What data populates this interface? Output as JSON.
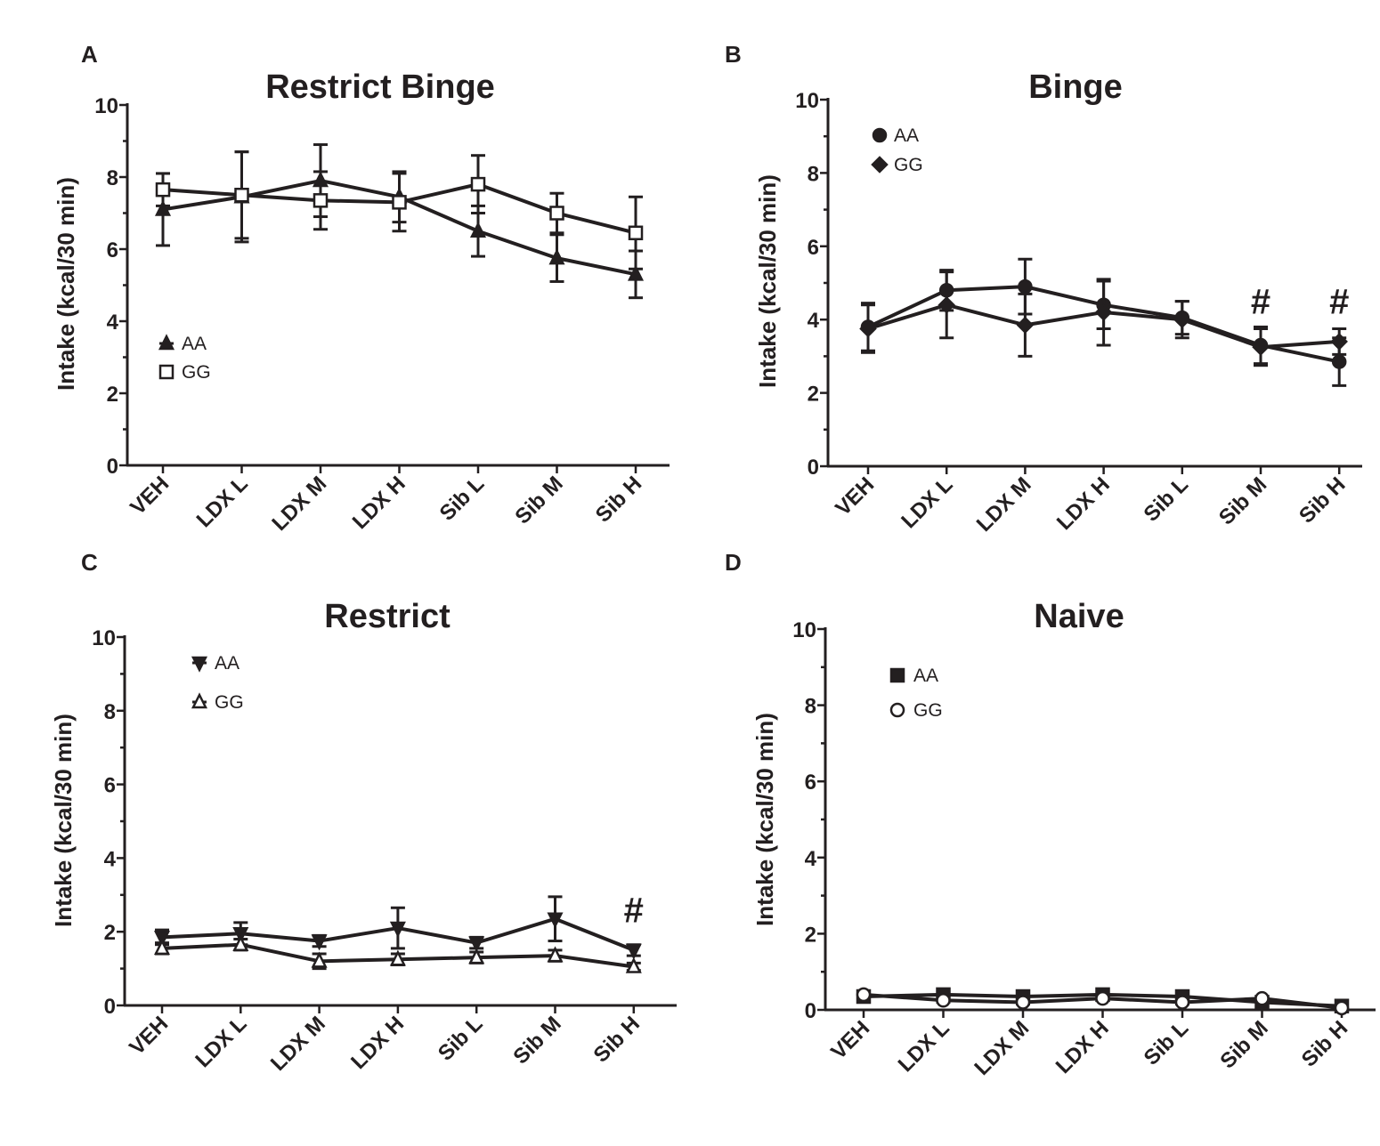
{
  "chart_data": [
    {
      "type": "line",
      "panel": "A",
      "title": "Restrict Binge",
      "ylabel": "Intake (kcal/30 min)",
      "xlabel": "",
      "ylim": [
        0,
        10
      ],
      "yticks": [
        "0",
        "2",
        "4",
        "6",
        "8",
        "10"
      ],
      "categories": [
        "VEH",
        "LDX L",
        "LDX M",
        "LDX H",
        "Sib L",
        "Sib M",
        "Sib H"
      ],
      "legend_position": "middle-left",
      "series": [
        {
          "name": "AA",
          "marker": "triangle-up",
          "fill": "#231f20",
          "values": [
            7.1,
            7.45,
            7.9,
            7.45,
            6.5,
            5.75,
            5.3
          ],
          "errors": [
            1.0,
            1.25,
            1.0,
            0.7,
            0.7,
            0.65,
            0.65
          ]
        },
        {
          "name": "GG",
          "marker": "square",
          "fill": "#ffffff",
          "values": [
            7.65,
            7.5,
            7.35,
            7.3,
            7.8,
            7.0,
            6.45
          ],
          "errors": [
            0.45,
            1.2,
            0.8,
            0.8,
            0.8,
            0.55,
            1.0
          ]
        }
      ],
      "annotations": []
    },
    {
      "type": "line",
      "panel": "B",
      "title": "Binge",
      "ylabel": "Intake (kcal/30 min)",
      "xlabel": "",
      "ylim": [
        0,
        10
      ],
      "yticks": [
        "0",
        "2",
        "4",
        "6",
        "8",
        "10"
      ],
      "categories": [
        "VEH",
        "LDX L",
        "LDX M",
        "LDX H",
        "Sib L",
        "Sib M",
        "Sib H"
      ],
      "legend_position": "top-left",
      "series": [
        {
          "name": "AA",
          "marker": "circle",
          "fill": "#231f20",
          "values": [
            3.8,
            4.8,
            4.9,
            4.4,
            4.05,
            3.3,
            2.85
          ],
          "errors": [
            0.65,
            0.55,
            0.75,
            0.65,
            0.45,
            0.5,
            0.65
          ]
        },
        {
          "name": "GG",
          "marker": "diamond",
          "fill": "#231f20",
          "values": [
            3.75,
            4.4,
            3.85,
            4.2,
            4.0,
            3.25,
            3.4
          ],
          "errors": [
            0.65,
            0.9,
            0.85,
            0.9,
            0.5,
            0.5,
            0.35
          ]
        }
      ],
      "annotations": [
        {
          "text": "#",
          "category": "Sib M",
          "y": 4.5
        },
        {
          "text": "#",
          "category": "Sib H",
          "y": 4.5
        }
      ]
    },
    {
      "type": "line",
      "panel": "C",
      "title": "Restrict",
      "ylabel": "Intake (kcal/30 min)",
      "xlabel": "",
      "ylim": [
        0,
        10
      ],
      "yticks": [
        "0",
        "2",
        "4",
        "6",
        "8",
        "10"
      ],
      "categories": [
        "VEH",
        "LDX L",
        "LDX M",
        "LDX H",
        "Sib L",
        "Sib M",
        "Sib H"
      ],
      "legend_position": "top-left",
      "series": [
        {
          "name": "AA",
          "marker": "triangle-down",
          "fill": "#231f20",
          "values": [
            1.85,
            1.95,
            1.75,
            2.1,
            1.7,
            2.35,
            1.5
          ],
          "errors": [
            0.2,
            0.3,
            0.15,
            0.55,
            0.15,
            0.6,
            0.15
          ]
        },
        {
          "name": "GG",
          "marker": "triangle-up",
          "fill": "#ffffff",
          "values": [
            1.55,
            1.65,
            1.2,
            1.25,
            1.3,
            1.35,
            1.05
          ],
          "errors": [
            0.15,
            0.15,
            0.2,
            0.15,
            0.15,
            0.15,
            0.1
          ]
        }
      ],
      "annotations": [
        {
          "text": "#",
          "category": "Sib H",
          "y": 2.6
        }
      ]
    },
    {
      "type": "line",
      "panel": "D",
      "title": "Naive",
      "ylabel": "Intake (kcal/30 min)",
      "xlabel": "",
      "ylim": [
        0,
        10
      ],
      "yticks": [
        "0",
        "2",
        "4",
        "6",
        "8",
        "10"
      ],
      "categories": [
        "VEH",
        "LDX L",
        "LDX M",
        "LDX H",
        "Sib L",
        "Sib M",
        "Sib H"
      ],
      "legend_position": "top-left",
      "series": [
        {
          "name": "AA",
          "marker": "square",
          "fill": "#231f20",
          "values": [
            0.35,
            0.4,
            0.35,
            0.4,
            0.35,
            0.2,
            0.1
          ],
          "errors": [
            0.08,
            0.05,
            0.05,
            0.05,
            0.05,
            0.05,
            0.05
          ]
        },
        {
          "name": "GG",
          "marker": "circle",
          "fill": "#ffffff",
          "values": [
            0.4,
            0.25,
            0.2,
            0.3,
            0.2,
            0.3,
            0.05
          ],
          "errors": [
            0.05,
            0.05,
            0.05,
            0.05,
            0.05,
            0.05,
            0.05
          ]
        }
      ],
      "annotations": []
    }
  ]
}
